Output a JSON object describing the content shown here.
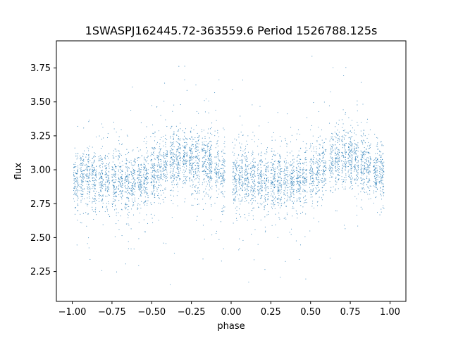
{
  "chart_data": {
    "type": "scatter",
    "title": "1SWASPJ162445.72-363559.6 Period 1526788.125s",
    "xlabel": "phase",
    "ylabel": "flux",
    "xlim": [
      -1.1,
      1.1
    ],
    "ylim": [
      2.03,
      3.95
    ],
    "x_ticks": [
      -1.0,
      -0.75,
      -0.5,
      -0.25,
      0.0,
      0.25,
      0.5,
      0.75,
      1.0
    ],
    "x_tick_labels": [
      "−1.00",
      "−0.75",
      "−0.50",
      "−0.25",
      "0.00",
      "0.25",
      "0.50",
      "0.75",
      "1.00"
    ],
    "y_ticks": [
      2.25,
      2.5,
      2.75,
      3.0,
      3.25,
      3.5,
      3.75
    ],
    "y_tick_labels": [
      "2.25",
      "2.50",
      "2.75",
      "3.00",
      "3.25",
      "3.50",
      "3.75"
    ],
    "point_color": "#1f77b4",
    "grid": false,
    "legend": "none",
    "series": [
      {
        "profile_phase": [
          -1.0,
          -0.9,
          -0.8,
          -0.7,
          -0.6,
          -0.5,
          -0.4,
          -0.3,
          -0.2,
          -0.1,
          0.0,
          0.1,
          0.2,
          0.3,
          0.4,
          0.5,
          0.6,
          0.7,
          0.8,
          0.9,
          1.0
        ],
        "profile_mean_flux": [
          2.93,
          2.95,
          2.93,
          2.91,
          2.9,
          2.95,
          3.05,
          3.1,
          3.05,
          3.0,
          2.93,
          2.95,
          2.93,
          2.91,
          2.9,
          2.95,
          3.05,
          3.1,
          3.05,
          3.0,
          2.93
        ],
        "scatter_sigma": 0.11,
        "flux_range": [
          2.1,
          3.88
        ]
      }
    ]
  }
}
